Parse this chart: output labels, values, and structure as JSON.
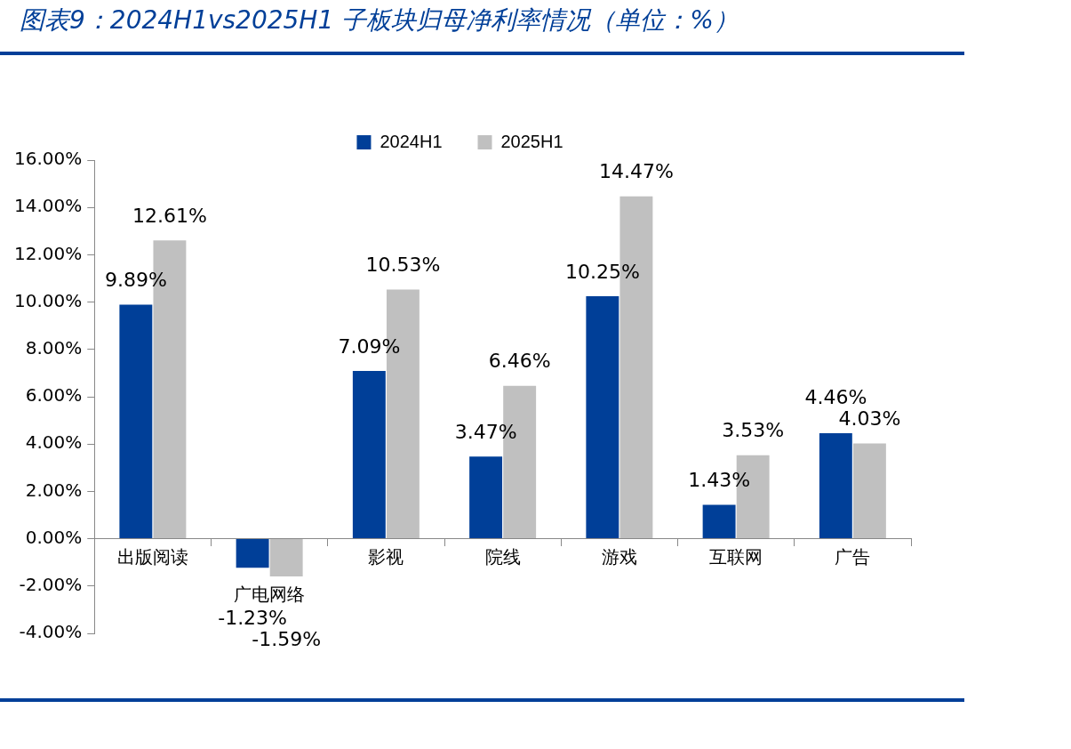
{
  "chart_data": {
    "type": "bar",
    "title": "图表9：2024H1vs2025H1 子板块归母净利率情况（单位：%）",
    "categories": [
      "出版阅读",
      "广电网络",
      "影视",
      "院线",
      "游戏",
      "互联网",
      "广告"
    ],
    "series": [
      {
        "name": "2024H1",
        "color": "#003f98",
        "values": [
          9.89,
          -1.23,
          7.09,
          3.47,
          10.25,
          1.43,
          4.46
        ],
        "value_labels": [
          "9.89%",
          "-1.23%",
          "7.09%",
          "3.47%",
          "10.25%",
          "1.43%",
          "4.46%"
        ]
      },
      {
        "name": "2025H1",
        "color": "#c0c0c0",
        "values": [
          12.61,
          -1.59,
          10.53,
          6.46,
          14.47,
          3.53,
          4.03
        ],
        "value_labels": [
          "12.61%",
          "-1.59%",
          "10.53%",
          "6.46%",
          "14.47%",
          "3.53%",
          "4.03%"
        ]
      }
    ],
    "ylim": [
      -4,
      16
    ],
    "yticks": [
      {
        "value": -4,
        "label": "-4.00%"
      },
      {
        "value": -2,
        "label": "-2.00%"
      },
      {
        "value": 0,
        "label": "0.00%"
      },
      {
        "value": 2,
        "label": "2.00%"
      },
      {
        "value": 4,
        "label": "4.00%"
      },
      {
        "value": 6,
        "label": "6.00%"
      },
      {
        "value": 8,
        "label": "8.00%"
      },
      {
        "value": 10,
        "label": "10.00%"
      },
      {
        "value": 12,
        "label": "12.00%"
      },
      {
        "value": 14,
        "label": "14.00%"
      },
      {
        "value": 16,
        "label": "16.00%"
      }
    ],
    "grid": false,
    "legend": "top"
  }
}
